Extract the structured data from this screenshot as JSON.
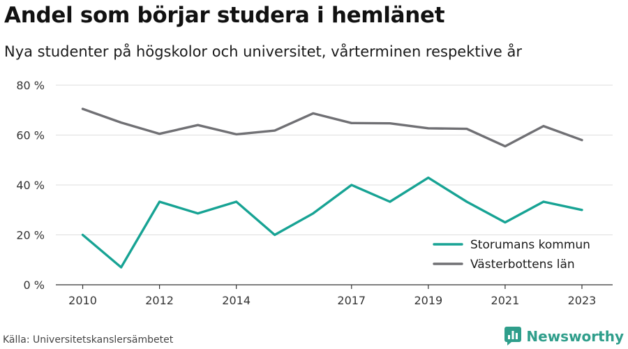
{
  "title": "Andel som börjar studera i hemlänet",
  "subtitle": "Nya studenter på högskolor och universitet, vårterminen respektive år",
  "source": "Källa: Universitetskanslersämbetet",
  "brand": {
    "name": "Newsworthy",
    "icon": "newsworthy-logo-icon",
    "color": "#2f9e8b"
  },
  "chart_data": {
    "type": "line",
    "x": [
      2010,
      2011,
      2012,
      2013,
      2014,
      2015,
      2016,
      2017,
      2018,
      2019,
      2020,
      2021,
      2022,
      2023
    ],
    "x_tick_values": [
      2010,
      2012,
      2014,
      2017,
      2019,
      2021,
      2023
    ],
    "x_tick_labels": [
      "2010",
      "2012",
      "2014",
      "2017",
      "2019",
      "2021",
      "2023"
    ],
    "y_tick_values": [
      0,
      20,
      40,
      60,
      80
    ],
    "y_tick_labels": [
      "0 %",
      "20 %",
      "40 %",
      "60 %",
      "80 %"
    ],
    "ylim": [
      0,
      80
    ],
    "xlim": [
      2009.3,
      2023.8
    ],
    "grid": true,
    "legend_position": "bottom-right",
    "series": [
      {
        "name": "Storumans kommun",
        "color": "#17a394",
        "values": [
          20,
          7,
          33.3,
          28.6,
          33.3,
          20,
          28.6,
          40,
          33.3,
          42.9,
          33.3,
          25,
          33.3,
          30
        ]
      },
      {
        "name": "Västerbottens län",
        "color": "#707074",
        "values": [
          70.5,
          65,
          60.5,
          64,
          60.3,
          61.8,
          68.7,
          64.8,
          64.7,
          62.7,
          62.5,
          55.5,
          63.6,
          58
        ]
      }
    ]
  }
}
